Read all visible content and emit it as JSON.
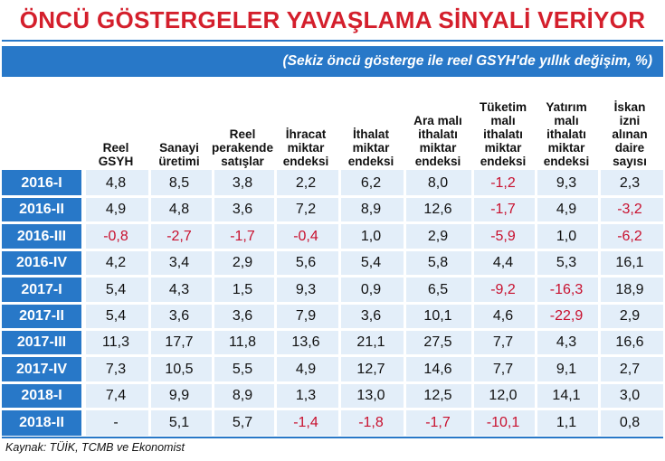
{
  "title": "ÖNCÜ GÖSTERGELER YAVAŞLAMA SİNYALİ VERİYOR",
  "subtitle": "(Sekiz öncü gösterge ile reel GSYH'de yıllık değişim, %)",
  "columns": [
    "Reel GSYH",
    "Sanayi üretimi",
    "Reel perakende satışlar",
    "İhracat miktar endeksi",
    "İthalat miktar endeksi",
    "Ara malı ithalatı miktar endeksi",
    "Tüketim malı ithalatı miktar endeksi",
    "Yatırım malı ithalatı miktar endeksi",
    "İskan izni alınan daire sayısı"
  ],
  "rows": [
    {
      "label": "2016-I",
      "values": [
        "4,8",
        "8,5",
        "3,8",
        "2,2",
        "6,2",
        "8,0",
        "-1,2",
        "9,3",
        "2,3"
      ]
    },
    {
      "label": "2016-II",
      "values": [
        "4,9",
        "4,8",
        "3,6",
        "7,2",
        "8,9",
        "12,6",
        "-1,7",
        "4,9",
        "-3,2"
      ]
    },
    {
      "label": "2016-III",
      "values": [
        "-0,8",
        "-2,7",
        "-1,7",
        "-0,4",
        "1,0",
        "2,9",
        "-5,9",
        "1,0",
        "-6,2"
      ]
    },
    {
      "label": "2016-IV",
      "values": [
        "4,2",
        "3,4",
        "2,9",
        "5,6",
        "5,4",
        "5,8",
        "4,4",
        "5,3",
        "16,1"
      ]
    },
    {
      "label": "2017-I",
      "values": [
        "5,4",
        "4,3",
        "1,5",
        "9,3",
        "0,9",
        "6,5",
        "-9,2",
        "-16,3",
        "18,9"
      ]
    },
    {
      "label": "2017-II",
      "values": [
        "5,4",
        "3,6",
        "3,6",
        "7,9",
        "3,6",
        "10,1",
        "4,6",
        "-22,9",
        "2,9"
      ]
    },
    {
      "label": "2017-III",
      "values": [
        "11,3",
        "17,7",
        "11,8",
        "13,6",
        "21,1",
        "27,5",
        "7,7",
        "4,3",
        "16,6"
      ]
    },
    {
      "label": "2017-IV",
      "values": [
        "7,3",
        "10,5",
        "5,5",
        "4,9",
        "12,7",
        "14,6",
        "7,7",
        "9,1",
        "2,7"
      ]
    },
    {
      "label": "2018-I",
      "values": [
        "7,4",
        "9,9",
        "8,9",
        "1,3",
        "13,0",
        "12,5",
        "12,0",
        "14,1",
        "3,0"
      ]
    },
    {
      "label": "2018-II",
      "values": [
        "-",
        "5,1",
        "5,7",
        "-1,4",
        "-1,8",
        "-1,7",
        "-10,1",
        "1,1",
        "0,8"
      ]
    }
  ],
  "source": "Kaynak: TÜİK, TCMB ve Ekonomist",
  "colors": {
    "accent": "#2878c8",
    "stripe": "#e3eef9",
    "negative": "#c8102e",
    "title": "#d41f2c"
  }
}
